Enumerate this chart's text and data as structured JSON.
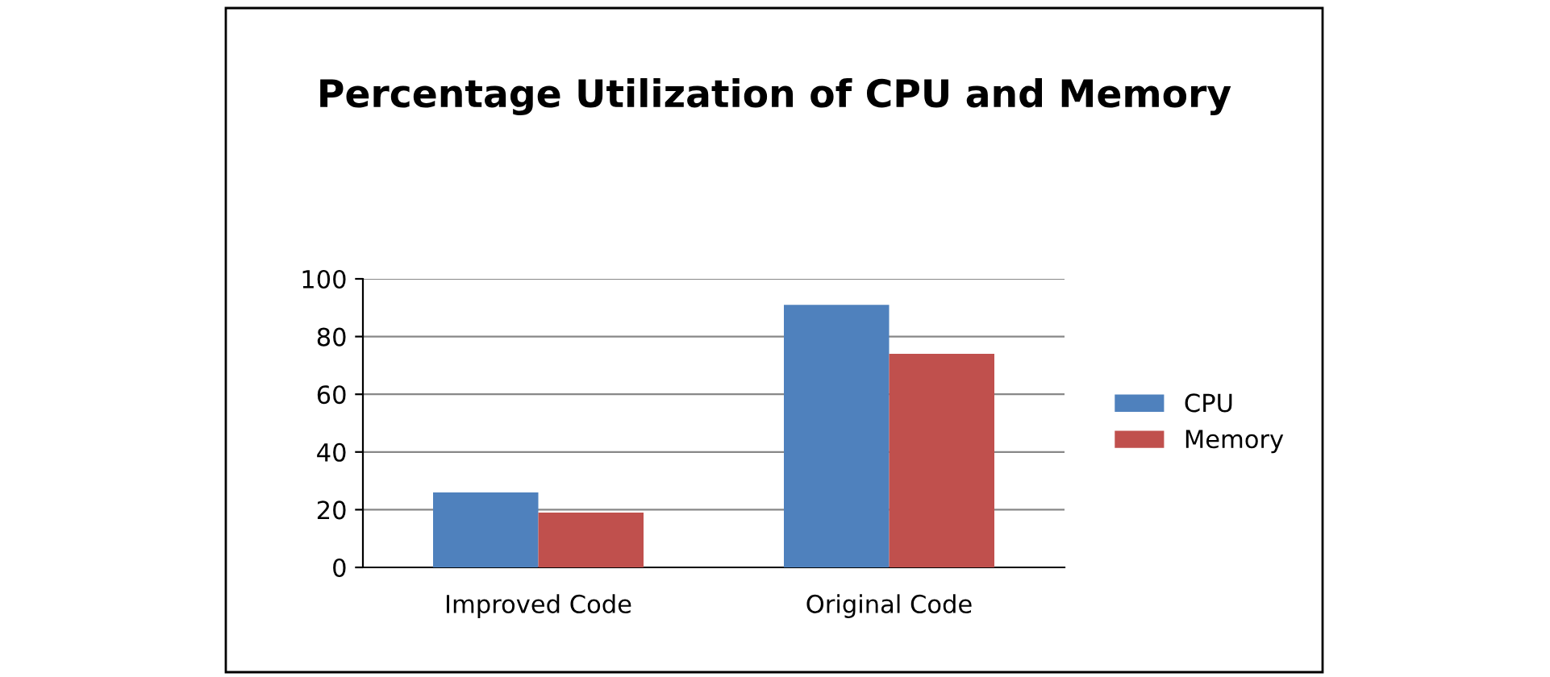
{
  "chart_data": {
    "type": "bar",
    "title": "Percentage Utilization of CPU and Memory",
    "categories": [
      "Improved Code",
      "Original Code"
    ],
    "series": [
      {
        "name": "CPU",
        "color": "#4f81bd",
        "values": [
          26,
          91
        ]
      },
      {
        "name": "Memory",
        "color": "#c0504d",
        "values": [
          19,
          74
        ]
      }
    ],
    "ylim": [
      0,
      100
    ],
    "yticks": [
      0,
      20,
      40,
      60,
      80,
      100
    ],
    "grid": "y",
    "legend": "right"
  }
}
